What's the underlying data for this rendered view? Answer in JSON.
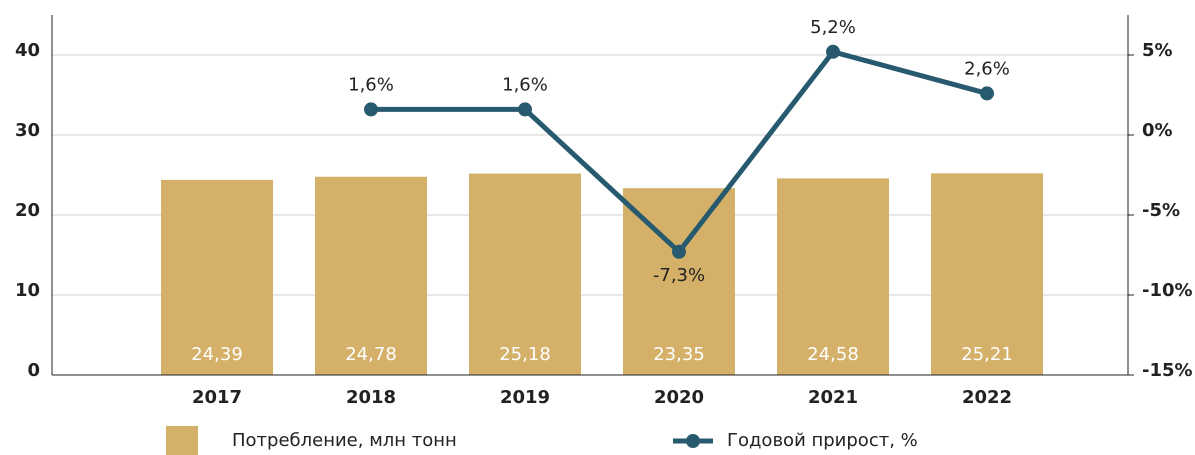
{
  "chart_data": {
    "type": "bar_line",
    "categories": [
      "2017",
      "2018",
      "2019",
      "2020",
      "2021",
      "2022"
    ],
    "series": [
      {
        "name": "Потребление, млн тонн",
        "color": "#d4b068",
        "values": [
          24.39,
          24.78,
          25.18,
          23.35,
          24.58,
          25.21
        ],
        "value_labels": [
          "24,39",
          "24,78",
          "25,18",
          "23,35",
          "24,58",
          "25,21"
        ]
      },
      {
        "name": "Годовой прирост, %",
        "color": "#275a6e",
        "axis": "y2",
        "values": [
          null,
          1.6,
          1.6,
          -7.3,
          5.2,
          2.6
        ],
        "value_labels": [
          null,
          "1,6%",
          "1,6%",
          "-7,3%",
          "5,2%",
          "2,6%"
        ]
      }
    ],
    "ylim": [
      0,
      45
    ],
    "yticks": [
      0,
      10,
      20,
      30,
      40
    ],
    "y2lim": [
      -15,
      7.5
    ],
    "y2ticks": [
      {
        "value": -15,
        "label": "-15%"
      },
      {
        "value": -10,
        "label": "-10%"
      },
      {
        "value": -5,
        "label": "-5%"
      },
      {
        "value": 0,
        "label": "0%"
      },
      {
        "value": 5,
        "label": "5%"
      }
    ],
    "grid": true
  }
}
